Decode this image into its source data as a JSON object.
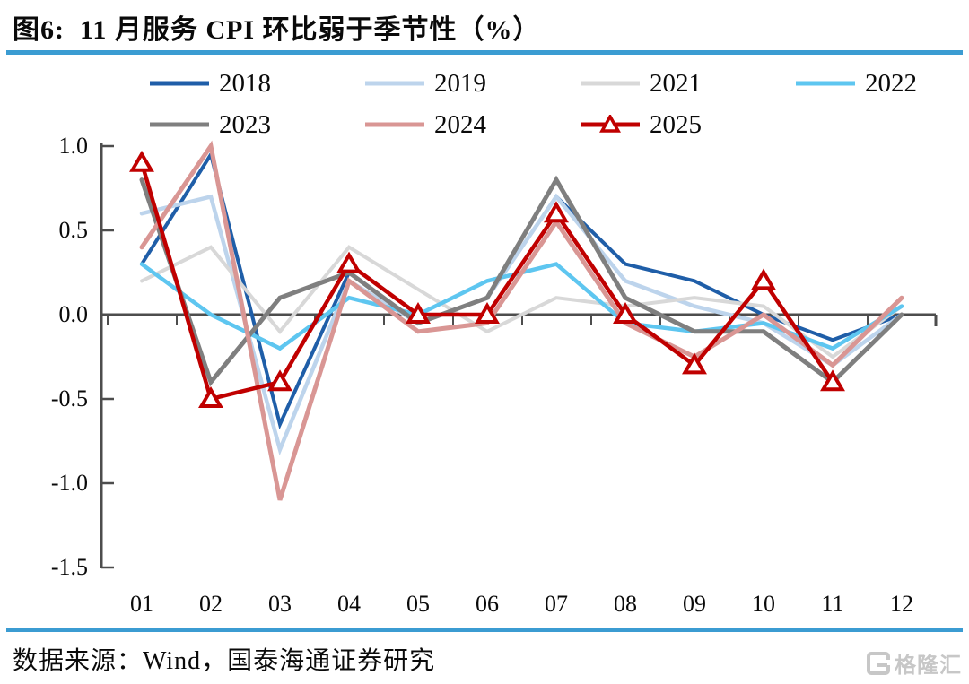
{
  "figure": {
    "title": "图6:  11 月服务 CPI 环比弱于季节性（%）",
    "source": "数据来源：Wind，国泰海通证券研究",
    "watermark": "格隆汇",
    "accent_color": "#3b9cd2"
  },
  "chart_data": {
    "type": "line",
    "title": "11 月服务 CPI 环比弱于季节性（%）",
    "xlabel": "",
    "ylabel": "",
    "categories": [
      "01",
      "02",
      "03",
      "04",
      "05",
      "06",
      "07",
      "08",
      "09",
      "10",
      "11",
      "12"
    ],
    "y_ticks": [
      "1.0",
      "0.5",
      "0.0",
      "-0.5",
      "-1.0",
      "-1.5"
    ],
    "ylim": [
      -1.5,
      1.0
    ],
    "grid": false,
    "legend_position": "top",
    "axis_color": "#4d4d4d",
    "series": [
      {
        "name": "2018",
        "color": "#1f5ea8",
        "marker": "none",
        "values": [
          0.3,
          0.95,
          -0.65,
          0.25,
          -0.05,
          0.1,
          0.7,
          0.3,
          0.2,
          0.0,
          -0.15,
          0.0
        ]
      },
      {
        "name": "2019",
        "color": "#bdd4ec",
        "marker": "none",
        "values": [
          0.6,
          0.7,
          -0.8,
          0.2,
          -0.05,
          0.1,
          0.7,
          0.2,
          0.05,
          -0.05,
          -0.3,
          0.0
        ]
      },
      {
        "name": "2021",
        "color": "#d8d8d8",
        "marker": "none",
        "values": [
          0.2,
          0.4,
          -0.1,
          0.4,
          0.15,
          -0.1,
          0.1,
          0.05,
          0.1,
          0.05,
          -0.25,
          0.05
        ]
      },
      {
        "name": "2022",
        "color": "#5ec6f0",
        "marker": "none",
        "values": [
          0.3,
          0.0,
          -0.2,
          0.1,
          0.0,
          0.2,
          0.3,
          -0.05,
          -0.1,
          -0.05,
          -0.2,
          0.05
        ]
      },
      {
        "name": "2023",
        "color": "#7f7f7f",
        "marker": "none",
        "values": [
          0.8,
          -0.4,
          0.1,
          0.25,
          -0.05,
          0.1,
          0.8,
          0.1,
          -0.1,
          -0.1,
          -0.4,
          0.0
        ]
      },
      {
        "name": "2024",
        "color": "#d99694",
        "marker": "none",
        "values": [
          0.4,
          1.0,
          -1.1,
          0.2,
          -0.1,
          -0.05,
          0.55,
          -0.05,
          -0.25,
          0.0,
          -0.3,
          0.1
        ]
      },
      {
        "name": "2025",
        "color": "#c00000",
        "marker": "triangle",
        "values": [
          0.9,
          -0.5,
          -0.4,
          0.3,
          0.0,
          0.0,
          0.6,
          0.0,
          -0.3,
          0.2,
          -0.4,
          null
        ]
      }
    ]
  }
}
